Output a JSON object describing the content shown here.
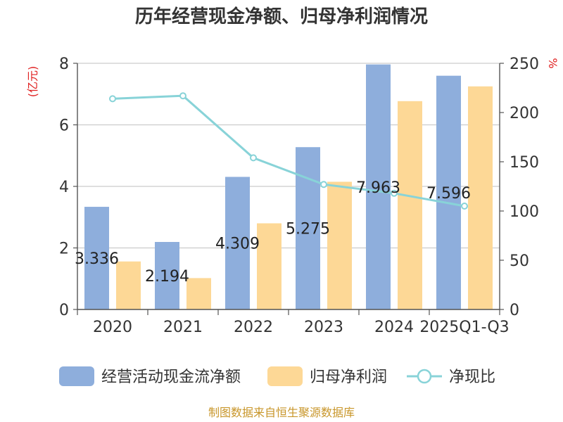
{
  "chart_data": {
    "type": "bar",
    "title": "历年经营现金净额、归母净利润情况",
    "left_axis_unit": "(亿元)",
    "right_axis_unit": "%",
    "categories": [
      "2020",
      "2021",
      "2022",
      "2023",
      "2024",
      "2025Q1-Q3"
    ],
    "ylim_left": [
      0,
      8
    ],
    "yticks_left": [
      "0",
      "2",
      "4",
      "6",
      "8"
    ],
    "ylim_right": [
      0,
      250
    ],
    "yticks_right": [
      "0",
      "50",
      "100",
      "150",
      "200",
      "250"
    ],
    "grid": true,
    "legend_position": "bottom",
    "series": [
      {
        "name": "经营活动现金流净额",
        "type": "bar",
        "axis": "left",
        "color": "#8eaedc",
        "values": [
          3.336,
          2.194,
          4.309,
          5.275,
          7.963,
          7.596
        ],
        "labels": [
          "3.336",
          "2.194",
          "4.309",
          "5.275",
          "7.963",
          "7.596"
        ]
      },
      {
        "name": "归母净利润",
        "type": "bar",
        "axis": "left",
        "color": "#fdd896",
        "values": [
          1.56,
          1.02,
          2.8,
          4.15,
          6.77,
          7.25
        ]
      },
      {
        "name": "净现比",
        "type": "line",
        "axis": "right",
        "color": "#88d3d8",
        "values": [
          214,
          217,
          154,
          127,
          118,
          105
        ]
      }
    ]
  },
  "source": "制图数据来自恒生聚源数据库"
}
